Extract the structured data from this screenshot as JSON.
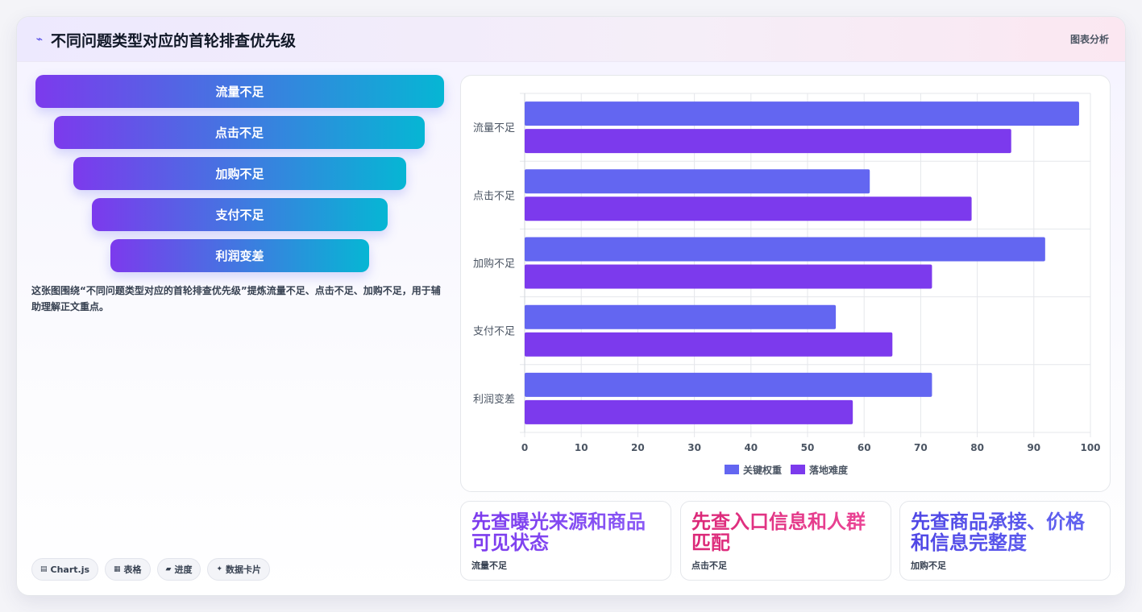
{
  "header": {
    "title": "不同问题类型对应的首轮排查优先级",
    "tag": "图表分析"
  },
  "funnel": [
    {
      "label": "流量不足"
    },
    {
      "label": "点击不足"
    },
    {
      "label": "加购不足"
    },
    {
      "label": "支付不足"
    },
    {
      "label": "利润变差"
    }
  ],
  "description": "这张图围绕“不同问题类型对应的首轮排查优先级”提炼流量不足、点击不足、加购不足，用于辅助理解正文重点。",
  "chips": [
    {
      "icon": "chart-icon",
      "glyph": "▤",
      "label": "Chart.js"
    },
    {
      "icon": "table-icon",
      "glyph": "▦",
      "label": "表格"
    },
    {
      "icon": "progress-icon",
      "glyph": "▰",
      "label": "进度"
    },
    {
      "icon": "card-icon",
      "glyph": "✦",
      "label": "数据卡片"
    }
  ],
  "chart_data": {
    "type": "bar",
    "orientation": "horizontal",
    "categories": [
      "流量不足",
      "点击不足",
      "加购不足",
      "支付不足",
      "利润变差"
    ],
    "series": [
      {
        "name": "关键权重",
        "color": "#6366f1",
        "values": [
          98,
          61,
          92,
          55,
          72
        ]
      },
      {
        "name": "落地难度",
        "color": "#7c3aed",
        "values": [
          86,
          79,
          72,
          65,
          58
        ]
      }
    ],
    "xlim": [
      0,
      100
    ],
    "xticks": [
      "0",
      "10",
      "20",
      "30",
      "40",
      "50",
      "60",
      "70",
      "80",
      "90",
      "100"
    ],
    "grid": true,
    "legend": "bottom"
  },
  "insights": [
    {
      "title": "先查曝光来源和商品可见状态",
      "sub": "流量不足",
      "color_from": "#7c3aed",
      "color_to": "#8b5cf6"
    },
    {
      "title": "先查入口信息和人群匹配",
      "sub": "点击不足",
      "color_from": "#db2777",
      "color_to": "#ec4899"
    },
    {
      "title": "先查商品承接、价格和信息完整度",
      "sub": "加购不足",
      "color_from": "#4f46e5",
      "color_to": "#6366f1"
    }
  ]
}
